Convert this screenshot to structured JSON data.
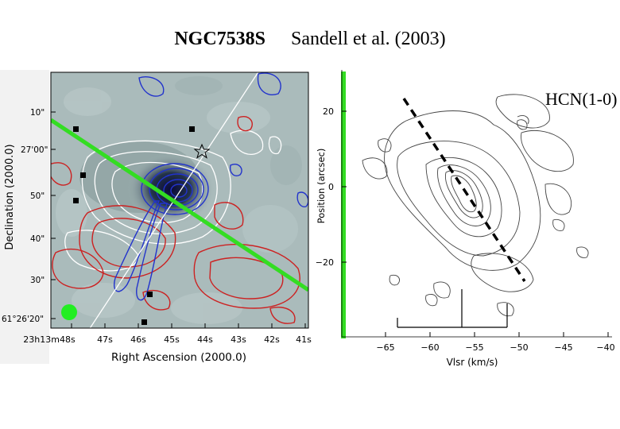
{
  "title": {
    "object": "NGC7538S",
    "reference": "Sandell et al. (2003)"
  },
  "left_panel": {
    "ylabel": "Declination (2000.0)",
    "xlabel": "Right Ascension (2000.0)",
    "dec_ticks": [
      "10\"",
      "27'00\"",
      "50\"",
      "40\"",
      "30\"",
      "61°26'20\""
    ],
    "ra_ticks": [
      "23h13m48s",
      "47s",
      "46s",
      "45s",
      "44s",
      "43s",
      "42s",
      "41s"
    ],
    "colors": {
      "red_contours": "#cc2222",
      "blue_contours": "#2233cc",
      "white_contours": "#ffffff",
      "green_line": "#33dd22",
      "background": "#aabbbb"
    }
  },
  "right_panel": {
    "label": "HCN(1-0)",
    "ylabel": "Position (arcsec)",
    "xlabel": "Vlsr (km/s)",
    "y_ticks": [
      "20",
      "0",
      "−20"
    ],
    "x_ticks": [
      "−65",
      "−60",
      "−55",
      "−50",
      "−45",
      "−40"
    ],
    "colors": {
      "contours": "#333333",
      "dashed_line": "#000000",
      "green_line": "#33dd22"
    }
  },
  "chart_data": {
    "type": "heatmap",
    "title": "HCN(1-0)",
    "xlabel": "Vlsr (km/s)",
    "ylabel": "Position (arcsec)",
    "xlim": [
      -67,
      -40
    ],
    "ylim": [
      -38,
      28
    ],
    "x_ticks": [
      -65,
      -60,
      -55,
      -50,
      -45,
      -40
    ],
    "y_ticks": [
      20,
      0,
      -20
    ]
  }
}
